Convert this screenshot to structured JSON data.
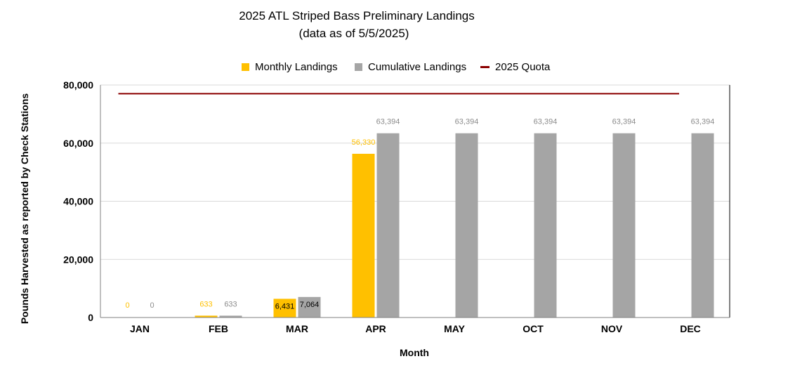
{
  "chart_data": {
    "type": "bar",
    "title": "2025 ATL Striped Bass Preliminary Landings",
    "subtitle": "(data as of  5/5/2025)",
    "xlabel": "Month",
    "ylabel": "Pounds Harvested as reported by Check Stations",
    "categories": [
      "JAN",
      "FEB",
      "MAR",
      "APR",
      "MAY",
      "OCT",
      "NOV",
      "DEC"
    ],
    "series": [
      {
        "name": "Monthly Landings",
        "color": "#FFC000",
        "values": [
          0,
          633,
          6431,
          56330,
          null,
          null,
          null,
          null
        ],
        "labels": [
          "0",
          "633",
          "6,431",
          "56,330",
          null,
          null,
          null,
          null
        ]
      },
      {
        "name": "Cumulative Landings",
        "color": "#A5A5A5",
        "values": [
          0,
          633,
          7064,
          63394,
          63394,
          63394,
          63394,
          63394
        ],
        "labels": [
          "0",
          "633",
          "7,064",
          "63,394",
          "63,394",
          "63,394",
          "63,394",
          "63,394"
        ]
      },
      {
        "name": "2025 Quota",
        "type": "line",
        "color": "#8B0000",
        "value": 77000
      }
    ],
    "ylim": [
      0,
      80000
    ],
    "yticks": [
      0,
      20000,
      40000,
      60000,
      80000
    ],
    "ytick_labels": [
      "0",
      "20,000",
      "40,000",
      "60,000",
      "80,000"
    ],
    "grid": true,
    "legend_position": "top"
  }
}
